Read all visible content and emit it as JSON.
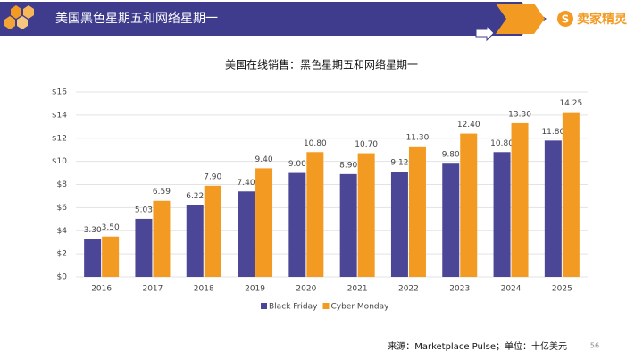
{
  "header": {
    "title": "美国黑色星期五和网络星期一",
    "logo": "卖家精灵",
    "logo_icon": "S"
  },
  "chart_data": {
    "type": "bar",
    "title": "美国在线销售：黑色星期五和网络星期一",
    "categories": [
      "2016",
      "2017",
      "2018",
      "2019",
      "2020",
      "2021",
      "2022",
      "2023",
      "2024",
      "2025"
    ],
    "series": [
      {
        "name": "Black Friday",
        "color": "#4b4796",
        "values": [
          3.3,
          5.03,
          6.22,
          7.4,
          9.0,
          8.9,
          9.12,
          9.8,
          10.8,
          11.8
        ],
        "value_labels": [
          "3.30",
          "5.03",
          "6.22",
          "7.40",
          "9.00",
          "8.90",
          "9.12",
          "9.80",
          "10.80",
          "11.80"
        ]
      },
      {
        "name": "Cyber Monday",
        "color": "#f39a22",
        "values": [
          3.5,
          6.59,
          7.9,
          9.4,
          10.8,
          10.7,
          11.3,
          12.4,
          13.3,
          14.25
        ],
        "value_labels": [
          "3.50",
          "6.59",
          "7.90",
          "9.40",
          "10.80",
          "10.70",
          "11.30",
          "12.40",
          "13.30",
          "14.25"
        ]
      }
    ],
    "ylim": [
      0,
      16
    ],
    "yticks": [
      {
        "value": 0,
        "label": "$0"
      },
      {
        "value": 2,
        "label": "$2"
      },
      {
        "value": 4,
        "label": "$4"
      },
      {
        "value": 6,
        "label": "$6"
      },
      {
        "value": 8,
        "label": "$8"
      },
      {
        "value": 10,
        "label": "$10"
      },
      {
        "value": 12,
        "label": "$12"
      },
      {
        "value": 14,
        "label": "$14"
      },
      {
        "value": 16,
        "label": "$16"
      }
    ],
    "grid": true,
    "legend": "bottom"
  },
  "footer": {
    "source": "来源：Marketplace Pulse；单位：十亿美元",
    "page": "56"
  }
}
